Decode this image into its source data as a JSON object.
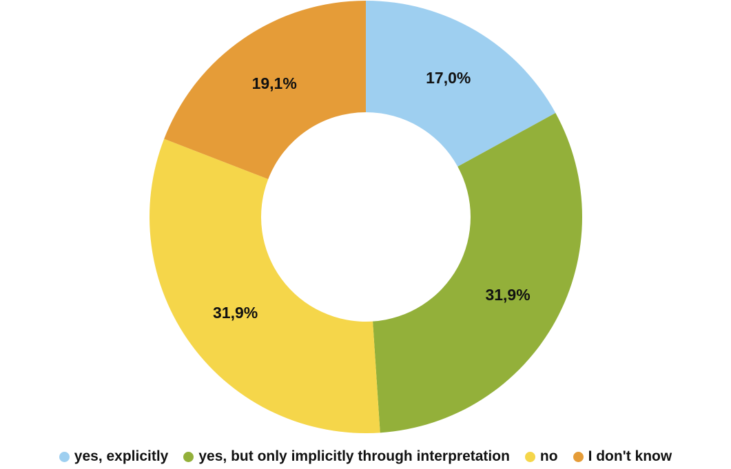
{
  "chart_data": {
    "type": "pie",
    "donut": true,
    "title": "",
    "categories": [
      "yes, explicitly",
      "yes, but only implicitly through interpretation",
      "no",
      "I don't know"
    ],
    "values": [
      17.0,
      31.9,
      31.9,
      19.1
    ],
    "labels": [
      "17,0%",
      "31,9%",
      "31,9%",
      "19,1%"
    ],
    "colors": [
      "#9ecff0",
      "#93b03a",
      "#f5d64a",
      "#e59c38"
    ],
    "start_angle": "12 o'clock",
    "direction": "clockwise",
    "legend_position": "bottom"
  }
}
